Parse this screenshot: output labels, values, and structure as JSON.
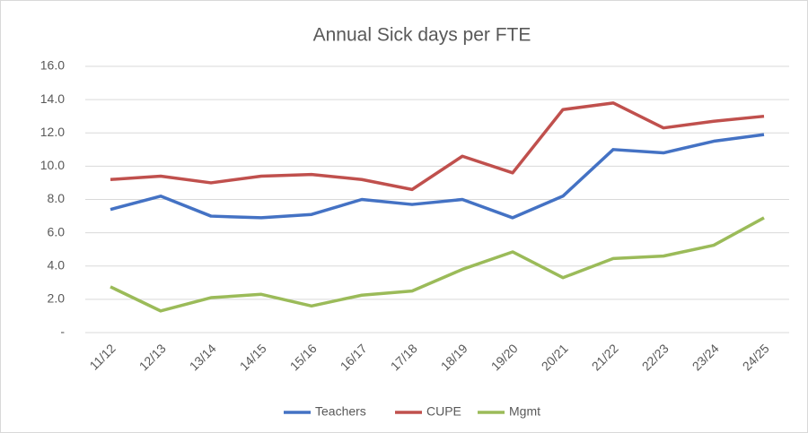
{
  "chart_data": {
    "type": "line",
    "title": "Annual Sick days per FTE",
    "categories": [
      "11/12",
      "12/13",
      "13/14",
      "14/15",
      "15/16",
      "16/17",
      "17/18",
      "18/19",
      "19/20",
      "20/21",
      "21/22",
      "22/23",
      "23/24",
      "24/25"
    ],
    "series": [
      {
        "name": "Teachers",
        "color": "#4472c4",
        "values": [
          7.4,
          8.2,
          7.0,
          6.9,
          7.1,
          8.0,
          7.7,
          8.0,
          6.9,
          8.2,
          11.0,
          10.8,
          11.5,
          11.9
        ]
      },
      {
        "name": "CUPE",
        "color": "#c0504d",
        "values": [
          9.2,
          9.4,
          9.0,
          9.4,
          9.5,
          9.2,
          8.6,
          10.6,
          9.6,
          13.4,
          13.8,
          12.3,
          12.7,
          13.0
        ]
      },
      {
        "name": "Mgmt",
        "color": "#9bbb59",
        "values": [
          2.75,
          1.3,
          2.1,
          2.3,
          1.6,
          2.25,
          2.5,
          3.8,
          4.85,
          3.3,
          4.45,
          4.6,
          5.25,
          6.9
        ]
      }
    ],
    "ylim": [
      0,
      16
    ],
    "yticks": [
      {
        "value": 0,
        "label": "-"
      },
      {
        "value": 2,
        "label": "2.0"
      },
      {
        "value": 4,
        "label": "4.0"
      },
      {
        "value": 6,
        "label": "6.0"
      },
      {
        "value": 8,
        "label": "8.0"
      },
      {
        "value": 10,
        "label": "10.0"
      },
      {
        "value": 12,
        "label": "12.0"
      },
      {
        "value": 14,
        "label": "14.0"
      },
      {
        "value": 16,
        "label": "16.0"
      }
    ],
    "grid": true,
    "legend": "bottom"
  }
}
